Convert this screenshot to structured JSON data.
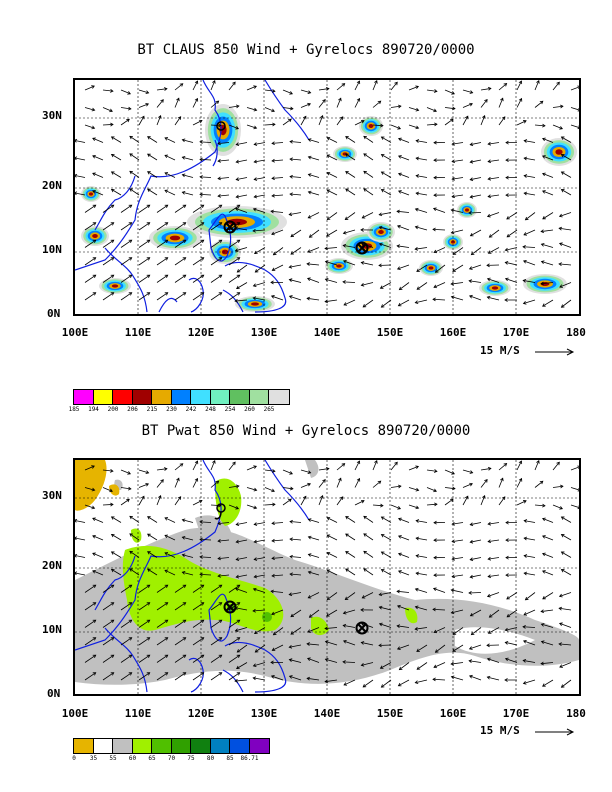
{
  "panels": [
    {
      "title": "BT CLAUS 850 Wind + Gyrelocs 890720/0000",
      "lat_labels": [
        "30N",
        "20N",
        "10N",
        "0N"
      ],
      "lon_labels": [
        "100E",
        "110E",
        "120E",
        "130E",
        "140E",
        "150E",
        "160E",
        "170E",
        "180"
      ],
      "ref_vector": "15 M/S",
      "colorbar": {
        "colors": [
          "#ff00ff",
          "#ffff00",
          "#ff0000",
          "#a00000",
          "#e6aa00",
          "#0080ff",
          "#40e0ff",
          "#70f0c0",
          "#60c060",
          "#a0e0a0",
          "#e0e0e0"
        ],
        "labels": [
          "185",
          "194",
          "200",
          "206",
          "215",
          "230",
          "242",
          "248",
          "254",
          "260",
          "265"
        ]
      }
    },
    {
      "title": "BT Pwat 850 Wind + Gyrelocs 890720/0000",
      "lat_labels": [
        "30N",
        "20N",
        "10N",
        "0N"
      ],
      "lon_labels": [
        "100E",
        "110E",
        "120E",
        "130E",
        "140E",
        "150E",
        "160E",
        "170E",
        "180"
      ],
      "ref_vector": "15 M/S",
      "colorbar": {
        "colors": [
          "#e6b400",
          "#ffffff",
          "#c0c0c0",
          "#a0f000",
          "#50c000",
          "#30a000",
          "#108010",
          "#0080c0",
          "#0050e0",
          "#8000c0"
        ],
        "labels": [
          "0",
          "35",
          "55",
          "60",
          "65",
          "70",
          "75",
          "80",
          "85",
          "86.71"
        ]
      }
    }
  ]
}
